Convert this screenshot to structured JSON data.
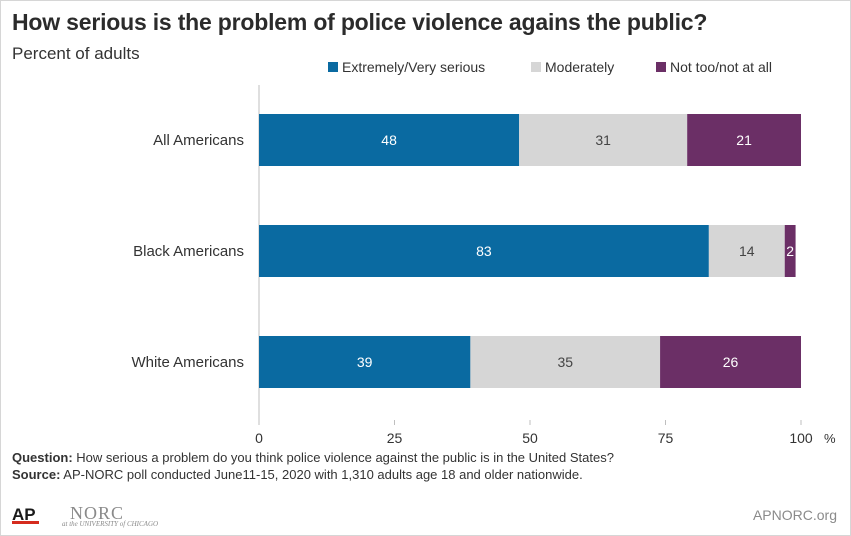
{
  "title": "How serious is the problem of police violence agains the public?",
  "subtitle": "Percent of adults",
  "question_label": "Question:",
  "question_text": " How serious a problem do you think police violence against the public is in the United States?",
  "source_label": "Source:",
  "source_text": " AP-NORC poll conducted June11-15, 2020 with 1,310 adults age 18 and older nationwide.",
  "logos": {
    "ap": "AP",
    "norc": "NORC",
    "norc_sub": "at the UNIVERSITY of CHICAGO"
  },
  "website": "APNORC.org",
  "colors": {
    "extremely": "#0a6aa1",
    "moderately": "#d6d6d6",
    "not_too": "#6b2f66"
  },
  "chart_data": {
    "type": "bar",
    "orientation": "horizontal",
    "stacked": true,
    "categories": [
      "All Americans",
      "Black Americans",
      "White Americans"
    ],
    "series": [
      {
        "name": "Extremely/Very serious",
        "values": [
          48,
          83,
          39
        ],
        "color": "#0a6aa1",
        "label_color": "#ffffff"
      },
      {
        "name": "Moderately",
        "values": [
          31,
          14,
          35
        ],
        "color": "#d6d6d6",
        "label_color": "#444444"
      },
      {
        "name": "Not too/not at all",
        "values": [
          21,
          2,
          26
        ],
        "color": "#6b2f66",
        "label_color": "#ffffff"
      }
    ],
    "xlim": [
      0,
      100
    ],
    "xticks": [
      0,
      25,
      50,
      75,
      100
    ],
    "x_unit": "%",
    "legend_position": "top-right",
    "grid": false
  }
}
